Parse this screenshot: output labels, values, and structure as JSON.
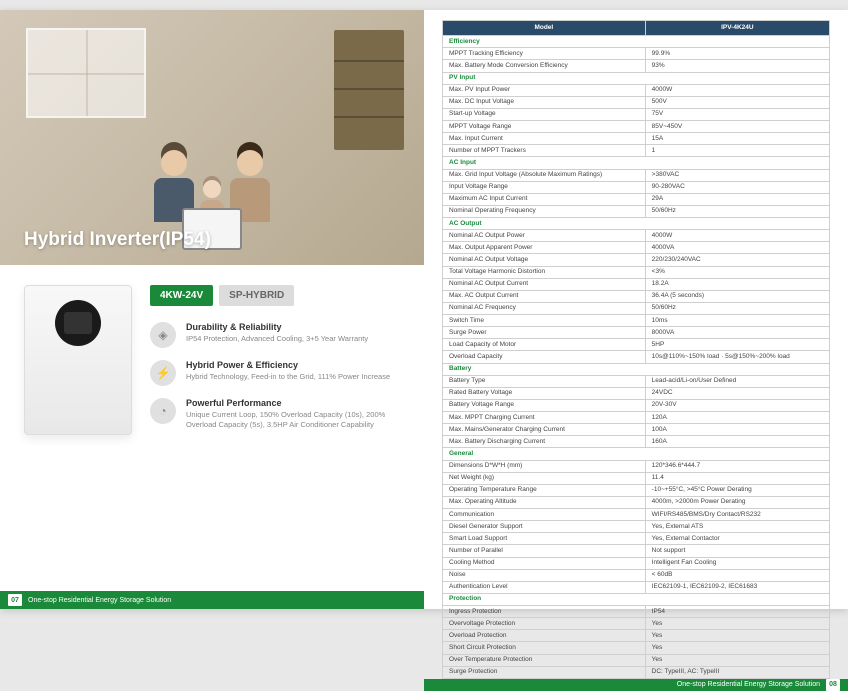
{
  "hero": {
    "title": "Hybrid Inverter(IP54)"
  },
  "badges": {
    "model": "4KW-24V",
    "series": "SP-HYBRID"
  },
  "features": [
    {
      "icon": "shield",
      "title": "Durability & Reliability",
      "desc": "IP54 Protection, Advanced Cooling, 3+5 Year Warranty"
    },
    {
      "icon": "power",
      "title": "Hybrid Power & Efficiency",
      "desc": "Hybrid Technology, Feed-in to the Grid, 111% Power Increase"
    },
    {
      "icon": "gauge",
      "title": "Powerful Performance",
      "desc": "Unique Current Loop, 150% Overload Capacity (10s), 200% Overload Capacity (5s), 3.5HP Air Conditioner Capability"
    }
  ],
  "footer": {
    "text": "One-stop Residential Energy Storage Solution",
    "page_left": "07",
    "page_right": "08"
  },
  "spec": {
    "header": [
      "Model",
      "IPV-4K24U"
    ],
    "sections": [
      {
        "title": "Efficiency",
        "rows": [
          [
            "MPPT Tracking Efficiency",
            "99.9%"
          ],
          [
            "Max. Battery Mode Conversion Efficiency",
            "93%"
          ]
        ]
      },
      {
        "title": "PV Input",
        "rows": [
          [
            "Max. PV Input Power",
            "4000W"
          ],
          [
            "Max. DC Input Voltage",
            "500V"
          ],
          [
            "Start-up Voltage",
            "75V"
          ],
          [
            "MPPT Voltage Range",
            "85V~450V"
          ],
          [
            "Max. Input Current",
            "15A"
          ],
          [
            "Number of MPPT Trackers",
            "1"
          ]
        ]
      },
      {
        "title": "AC Input",
        "rows": [
          [
            "Max. Grid Input Voltage (Absolute Maximum Ratings)",
            ">380VAC"
          ],
          [
            "Input Voltage Range",
            "90-280VAC"
          ],
          [
            "Maximum AC Input Current",
            "29A"
          ],
          [
            "Nominal Operating Frequency",
            "50/60Hz"
          ]
        ]
      },
      {
        "title": "AC Output",
        "rows": [
          [
            "Nominal AC Output Power",
            "4000W"
          ],
          [
            "Max. Output Apparent Power",
            "4000VA"
          ],
          [
            "Nominal AC Output Voltage",
            "220/230/240VAC"
          ],
          [
            "Total Voltage Harmonic Distortion",
            "<3%"
          ],
          [
            "Nominal AC Output Current",
            "18.2A"
          ],
          [
            "Max. AC Output Current",
            "36.4A (5 seconds)"
          ],
          [
            "Nominal AC Frequency",
            "50/60Hz"
          ],
          [
            "Switch Time",
            "10ms"
          ],
          [
            "Surge Power",
            "8000VA"
          ],
          [
            "Load Capacity of Motor",
            "5HP"
          ],
          [
            "Overload Capacity",
            "10s@110%~150% load · 5s@150%~200% load"
          ]
        ]
      },
      {
        "title": "Battery",
        "rows": [
          [
            "Battery Type",
            "Lead-acid/Li-on/User Defined"
          ],
          [
            "Rated Battery Voltage",
            "24VDC"
          ],
          [
            "Battery Voltage Range",
            "20V-30V"
          ],
          [
            "Max. MPPT Charging Current",
            "120A"
          ],
          [
            "Max. Mains/Generator Charging Current",
            "100A"
          ],
          [
            "Max. Battery Discharging Current",
            "160A"
          ]
        ]
      },
      {
        "title": "General",
        "rows": [
          [
            "Dimensions D*W*H (mm)",
            "120*346.6*444.7"
          ],
          [
            "Net Weight (kg)",
            "11.4"
          ],
          [
            "Operating Temperature Range",
            "-10~+55°C, >45°C Power Derating"
          ],
          [
            "Max. Operating Altitude",
            "4000m, >2000m Power Derating"
          ],
          [
            "Communication",
            "WIFI/RS485/BMS/Dry Contact/RS232"
          ],
          [
            "Diesel Generator Support",
            "Yes, External ATS"
          ],
          [
            "Smart Load Support",
            "Yes, External Contactor"
          ],
          [
            "Number of Parallel",
            "Not support"
          ],
          [
            "Cooling Method",
            "Intelligent Fan Cooling"
          ],
          [
            "Noise",
            "< 60dB"
          ],
          [
            "Authentication Level",
            "IEC62109-1, IEC62109-2, IEC61683"
          ]
        ]
      },
      {
        "title": "Protection",
        "rows": [
          [
            "Ingress Protection",
            "IP54"
          ],
          [
            "Overvoltage Protection",
            "Yes"
          ],
          [
            "Overload Protection",
            "Yes"
          ],
          [
            "Short Circuit Protection",
            "Yes"
          ],
          [
            "Over Temperature Protection",
            "Yes"
          ],
          [
            "Surge Protection",
            "DC: TypeIII, AC: TypeIII"
          ]
        ]
      }
    ]
  }
}
